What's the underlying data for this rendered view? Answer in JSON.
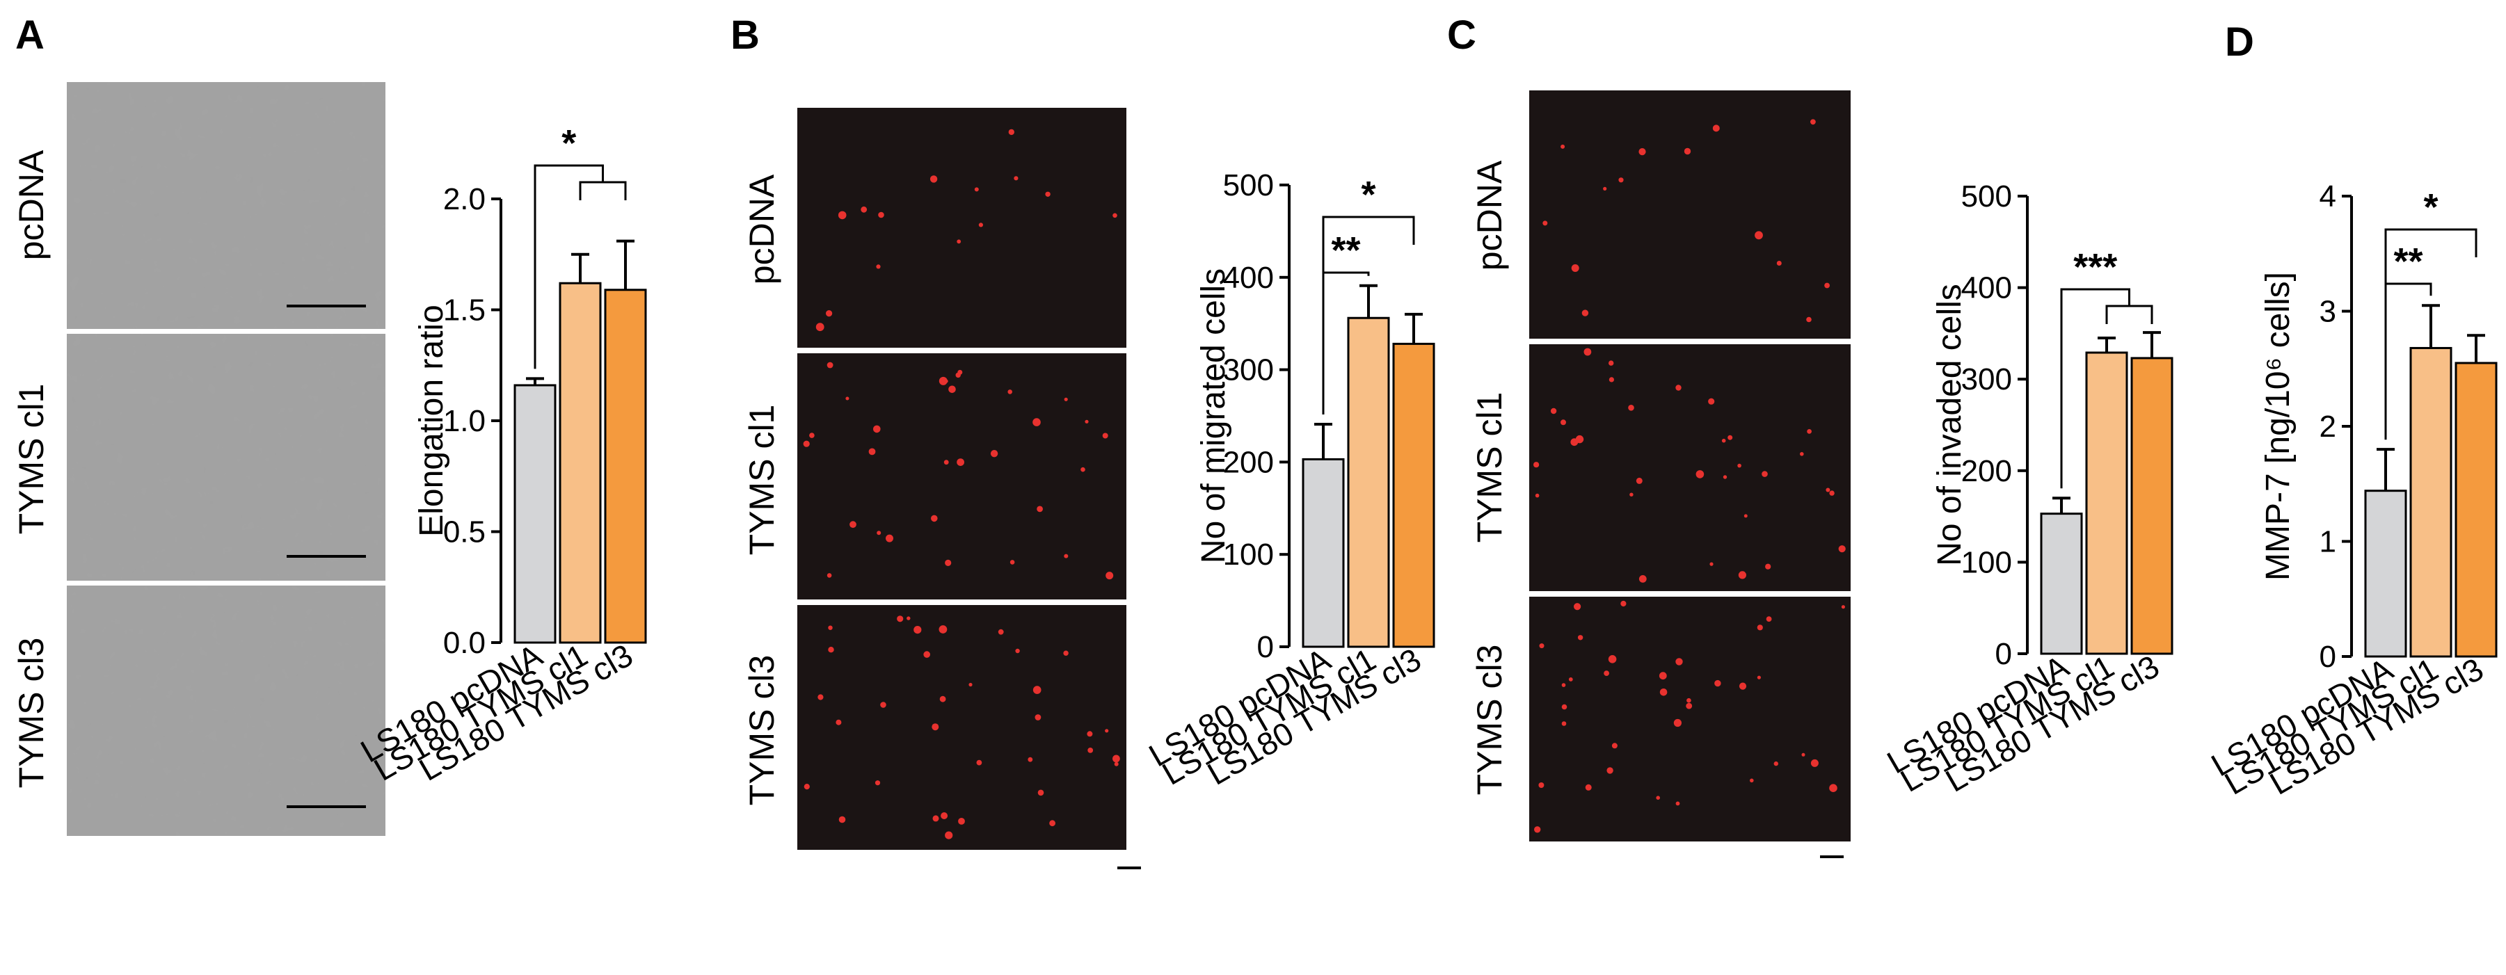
{
  "panel_labels": [
    "A",
    "B",
    "C",
    "D"
  ],
  "row_labels": [
    "pcDNA",
    "TYMS cl1",
    "TYMS cl3"
  ],
  "colors": {
    "pcdna": "#d4d5d7",
    "cl1": "#f8bf87",
    "cl3": "#f49a3e",
    "micrograph_bf": "#a3a3a3",
    "micrograph_fluor": "#1b1414",
    "fluor_dots": "#e8322f"
  },
  "chart_data": [
    {
      "id": "A",
      "type": "bar",
      "categories": [
        "LS180 pcDNA",
        "LS180 TYMS cl1",
        "LS180 TYMS cl3"
      ],
      "values": [
        1.16,
        1.62,
        1.59
      ],
      "errors": [
        0.03,
        0.13,
        0.22
      ],
      "ylabel": "Elongation ratio",
      "ylim": [
        0,
        2.0
      ],
      "yticks": [
        "0.0",
        "0.5",
        "1.0",
        "1.5",
        "2.0"
      ],
      "significance": [
        "*"
      ]
    },
    {
      "id": "B",
      "type": "bar",
      "categories": [
        "LS180 pcDNA",
        "LS180 TYMS cl1",
        "LS180 TYMS cl3"
      ],
      "values": [
        203,
        356,
        328
      ],
      "errors": [
        38,
        35,
        32
      ],
      "ylabel": "No of migrated cells",
      "ylim": [
        0,
        500
      ],
      "yticks": [
        "0",
        "100",
        "200",
        "300",
        "400",
        "500"
      ],
      "significance": [
        "**",
        "*"
      ]
    },
    {
      "id": "C",
      "type": "bar",
      "categories": [
        "LS180 pcDNA",
        "LS180 TYMS cl1",
        "LS180 TYMS cl3"
      ],
      "values": [
        153,
        329,
        323
      ],
      "errors": [
        17,
        16,
        28
      ],
      "ylabel": "No of invaded cells",
      "ylim": [
        0,
        500
      ],
      "yticks": [
        "0",
        "100",
        "200",
        "300",
        "400",
        "500"
      ],
      "significance": [
        "***"
      ]
    },
    {
      "id": "D",
      "type": "bar",
      "categories": [
        "LS180 pcDNA",
        "LS180 TYMS cl1",
        "LS180 TYMS cl3"
      ],
      "values": [
        1.44,
        2.68,
        2.55
      ],
      "errors": [
        0.36,
        0.37,
        0.24
      ],
      "ylabel": "MMP-7 [ng/10⁶ cells]",
      "ylim": [
        0,
        4
      ],
      "yticks": [
        "0",
        "1",
        "2",
        "3",
        "4"
      ],
      "significance": [
        "**",
        "*"
      ]
    }
  ]
}
